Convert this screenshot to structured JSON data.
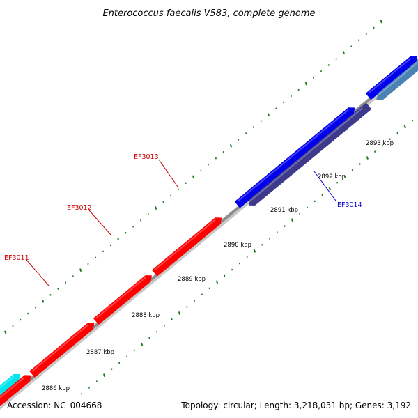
{
  "title": "Enterococcus faecalis V583, complete genome",
  "footer": {
    "accession": "Accession: NC_004668",
    "summary": "Topology: circular; Length: 3,218,031 bp; Genes: 3,192"
  },
  "colors": {
    "backbone": "#8c8c8c",
    "tick": "#1a7a1a",
    "label_forward": "#cc0000",
    "label_reverse": "#0000cc"
  },
  "ticks": [
    {
      "label": "2886 kbp"
    },
    {
      "label": "2887 kbp"
    },
    {
      "label": "2888 kbp"
    },
    {
      "label": "2889 kbp"
    },
    {
      "label": "2890 kbp"
    },
    {
      "label": "2891 kbp"
    },
    {
      "label": "2892 kbp"
    },
    {
      "label": "2893 kbp"
    }
  ],
  "genes": [
    {
      "label": "",
      "color": "#00e5ee",
      "strand": "forward"
    },
    {
      "label": "",
      "color": "#ff0000",
      "strand": "forward"
    },
    {
      "label": "EF3011",
      "color": "#ff0000",
      "strand": "forward"
    },
    {
      "label": "EF3012",
      "color": "#ff0000",
      "strand": "forward"
    },
    {
      "label": "EF3013",
      "color": "#ff0000",
      "strand": "forward"
    },
    {
      "label": "",
      "color": "#0000ee",
      "strand": "forward"
    },
    {
      "label": "EF3014",
      "color": "#3d3a8c",
      "strand": "reverse"
    },
    {
      "label": "",
      "color": "#0000ee",
      "strand": "forward"
    },
    {
      "label": "",
      "color": "#4a82b4",
      "strand": "reverse"
    }
  ]
}
